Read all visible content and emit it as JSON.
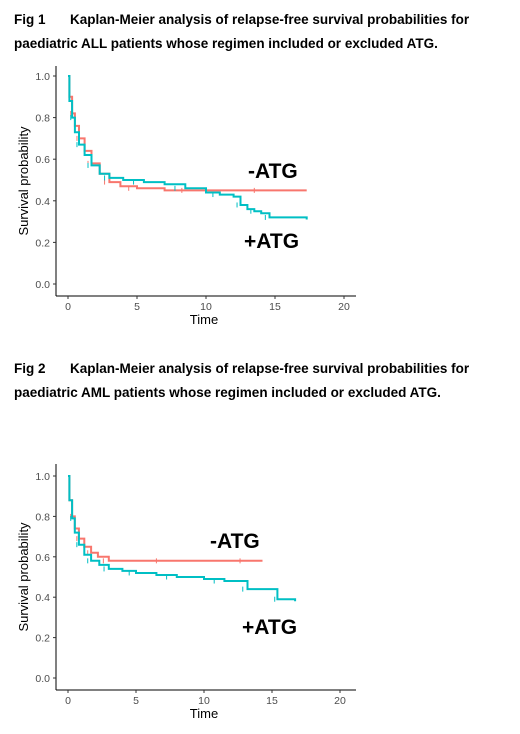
{
  "figures": [
    {
      "label": "Fig 1",
      "caption": "Kaplan-Meier analysis of relapse-free survival probabilities for paediatric ALL patients whose regimen included or excluded ATG."
    },
    {
      "label": "Fig 2",
      "caption": "Kaplan-Meier analysis of relapse-free survival probabilities for paediatric AML patients whose regimen included or excluded ATG."
    }
  ],
  "chart_data": [
    {
      "type": "line",
      "step": true,
      "xlabel": "Time",
      "ylabel": "Survival probability",
      "xlim": [
        0,
        20
      ],
      "ylim": [
        0,
        1
      ],
      "xticks": [
        "0",
        "5",
        "10",
        "15",
        "20"
      ],
      "yticks": [
        "0.0",
        "0.2",
        "0.4",
        "0.6",
        "0.8",
        "1.0"
      ],
      "grid": false,
      "legend": "none",
      "annotations": [
        "-ATG",
        "+ATG"
      ],
      "series": [
        {
          "name": "-ATG",
          "color": "#f8766d",
          "x": [
            0,
            0.1,
            0.3,
            0.5,
            0.8,
            1.2,
            1.7,
            2.3,
            3.0,
            3.8,
            5.0,
            7.0,
            9.5,
            12.0,
            15.0,
            17.3
          ],
          "y": [
            1.0,
            0.9,
            0.82,
            0.76,
            0.7,
            0.64,
            0.58,
            0.53,
            0.49,
            0.47,
            0.46,
            0.45,
            0.45,
            0.45,
            0.45,
            0.45
          ]
        },
        {
          "name": "+ATG",
          "color": "#00bfc4",
          "x": [
            0,
            0.1,
            0.3,
            0.5,
            0.8,
            1.2,
            1.7,
            2.3,
            3.0,
            4.0,
            5.5,
            7.0,
            8.5,
            10.0,
            11.0,
            12.0,
            12.5,
            13.0,
            13.5,
            14.0,
            14.6,
            17.3
          ],
          "y": [
            1.0,
            0.88,
            0.8,
            0.73,
            0.67,
            0.62,
            0.57,
            0.53,
            0.51,
            0.5,
            0.49,
            0.48,
            0.46,
            0.44,
            0.43,
            0.42,
            0.38,
            0.36,
            0.35,
            0.34,
            0.32,
            0.31
          ]
        }
      ]
    },
    {
      "type": "line",
      "step": true,
      "xlabel": "Time",
      "ylabel": "Survival probability",
      "xlim": [
        0,
        20
      ],
      "ylim": [
        0,
        1
      ],
      "xticks": [
        "0",
        "5",
        "10",
        "15",
        "20"
      ],
      "yticks": [
        "0.0",
        "0.2",
        "0.4",
        "0.6",
        "0.8",
        "1.0"
      ],
      "grid": false,
      "legend": "none",
      "annotations": [
        "-ATG",
        "+ATG"
      ],
      "series": [
        {
          "name": "-ATG",
          "color": "#f8766d",
          "x": [
            0,
            0.1,
            0.3,
            0.5,
            0.8,
            1.2,
            1.7,
            2.2,
            3.0,
            5.0,
            8.0,
            11.0,
            14.3
          ],
          "y": [
            1.0,
            0.88,
            0.8,
            0.74,
            0.69,
            0.65,
            0.62,
            0.6,
            0.58,
            0.58,
            0.58,
            0.58,
            0.58
          ]
        },
        {
          "name": "+ATG",
          "color": "#00bfc4",
          "x": [
            0,
            0.1,
            0.3,
            0.5,
            0.8,
            1.2,
            1.7,
            2.3,
            3.0,
            4.0,
            5.0,
            6.5,
            8.0,
            10.0,
            11.5,
            12.5,
            13.2,
            15.0,
            15.4,
            16.7
          ],
          "y": [
            1.0,
            0.88,
            0.79,
            0.72,
            0.66,
            0.61,
            0.58,
            0.56,
            0.54,
            0.53,
            0.52,
            0.51,
            0.5,
            0.49,
            0.48,
            0.48,
            0.44,
            0.44,
            0.39,
            0.38
          ]
        }
      ]
    }
  ]
}
